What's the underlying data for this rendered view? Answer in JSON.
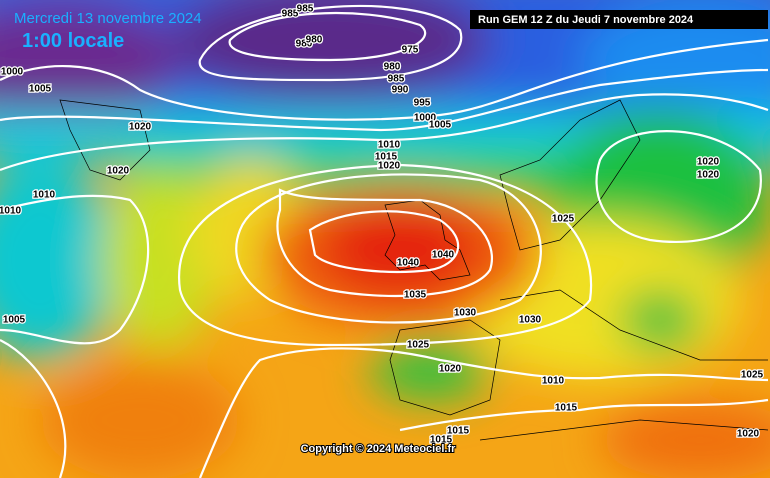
{
  "header": {
    "title": "Mercredi 13 novembre 2024",
    "time": "1:00 locale",
    "run": "Run GEM 12 Z du Jeudi 7 novembre 2024"
  },
  "footer": {
    "copyright": "Copyright © 2024 Meteociel.fr"
  },
  "isobar_labels": [
    "985",
    "985",
    "980",
    "980",
    "975",
    "980",
    "985",
    "990",
    "995",
    "1000",
    "1005",
    "1000",
    "1005",
    "1020",
    "1020",
    "1010",
    "1010",
    "1010",
    "1015",
    "1020",
    "1020",
    "1020",
    "1025",
    "1040",
    "1040",
    "1035",
    "1030",
    "1030",
    "1025",
    "1020",
    "1010",
    "1015",
    "1015",
    "1015",
    "1025",
    "1020",
    "1005"
  ]
}
